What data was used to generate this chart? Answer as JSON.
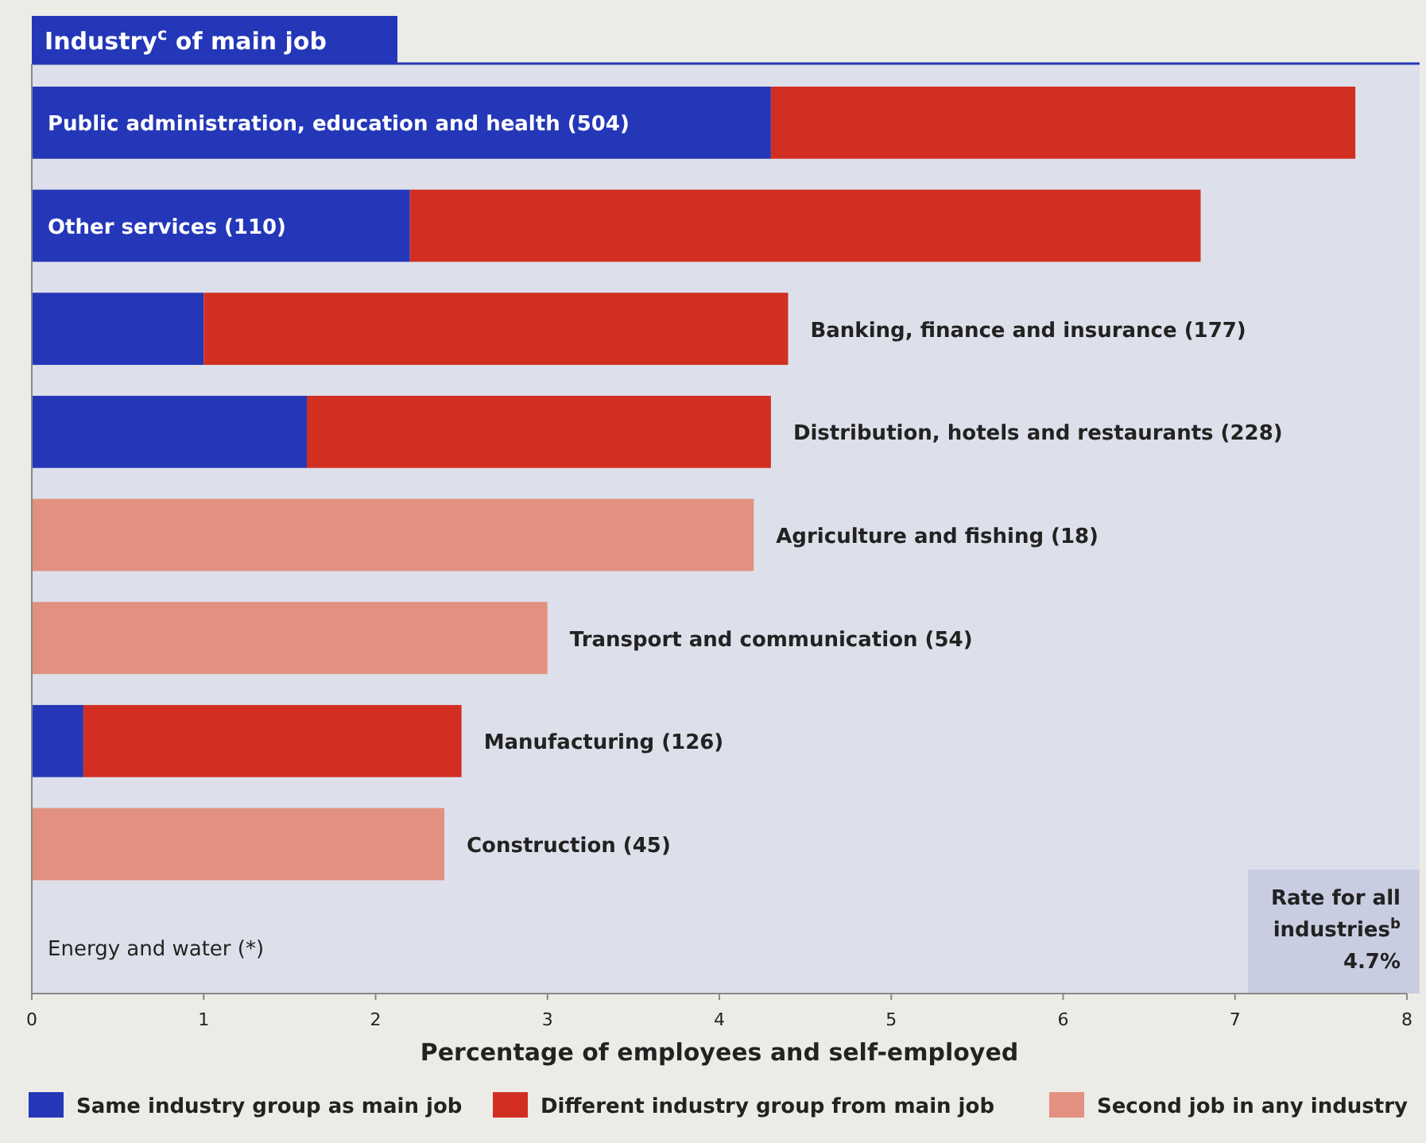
{
  "chart_data": {
    "type": "bar",
    "orientation": "horizontal",
    "stacked": true,
    "title": "Industry$^{c}$ of main job",
    "xlabel": "Percentage of employees and self-employed",
    "categories": [
      "Public administration, education and health (504)",
      "Other services (110)",
      "Banking, finance and insurance (177)",
      "Distribution, hotels and restaurants (228)",
      "Agriculture and fishing (18)",
      "Transport and communication (54)",
      "Manufacturing (126)",
      "Construction (45)",
      "Energy and water (*)"
    ],
    "series": [
      {
        "name": "Same industry group as main job",
        "color": "#2437b8",
        "values": [
          4.3,
          2.2,
          1.0,
          1.6,
          null,
          null,
          0.3,
          null,
          null
        ]
      },
      {
        "name": "Different industry group from main job",
        "color": "#d22f22",
        "values": [
          3.4,
          4.6,
          3.4,
          2.7,
          null,
          null,
          2.2,
          null,
          null
        ]
      },
      {
        "name": "Second job in any industry",
        "color": "#e29080",
        "values": [
          null,
          null,
          null,
          null,
          4.2,
          3.0,
          null,
          2.4,
          null
        ]
      }
    ],
    "xlim": [
      0,
      8
    ],
    "xticks": [
      0,
      1,
      2,
      3,
      4,
      5,
      6,
      7,
      8
    ],
    "grid": false,
    "legend": "bottom",
    "annotations": [
      "Rate for all industries$^{b}$ 4.7%"
    ]
  }
}
